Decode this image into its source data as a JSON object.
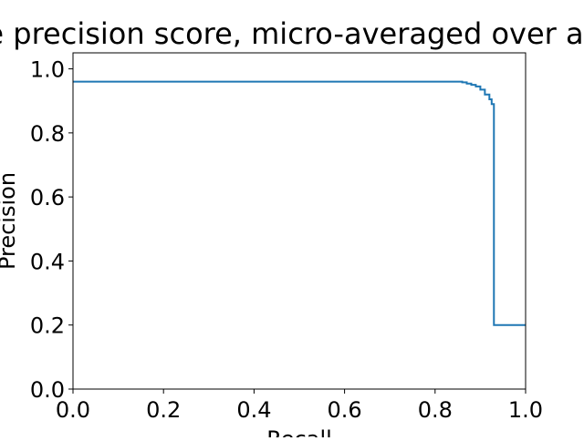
{
  "chart_data": {
    "type": "line",
    "title": "Average precision score, micro-averaged over all classes",
    "xlabel": "Recall",
    "ylabel": "Precision",
    "xlim": [
      0.0,
      1.0
    ],
    "ylim": [
      0.0,
      1.05
    ],
    "xticks": [
      "0.0",
      "0.2",
      "0.4",
      "0.6",
      "0.8",
      "1.0"
    ],
    "yticks": [
      "0.0",
      "0.2",
      "0.4",
      "0.6",
      "0.8",
      "1.0"
    ],
    "grid": false,
    "legend": "none",
    "drawstyle": "steps-post",
    "line_color": "#1f77b4",
    "series": [
      {
        "x": [
          0.0,
          0.85,
          0.86,
          0.87,
          0.88,
          0.89,
          0.9,
          0.91,
          0.92,
          0.925,
          0.93,
          0.93,
          1.0
        ],
        "y": [
          0.96,
          0.96,
          0.958,
          0.954,
          0.95,
          0.945,
          0.935,
          0.92,
          0.905,
          0.89,
          0.88,
          0.2,
          0.2
        ]
      }
    ]
  }
}
